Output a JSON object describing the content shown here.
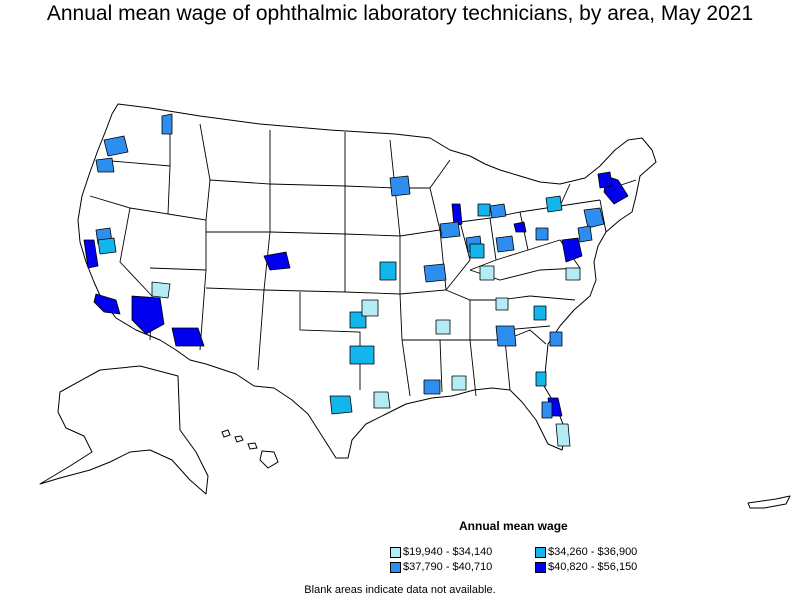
{
  "title": "Annual mean wage of ophthalmic laboratory technicians, by area, May 2021",
  "legend": {
    "title": "Annual mean wage",
    "bins": [
      {
        "label": "$19,940 - $34,140",
        "color": "#b3ecf5"
      },
      {
        "label": "$34,260 - $36,900",
        "color": "#13b6ec"
      },
      {
        "label": "$37,790 - $40,710",
        "color": "#2e8ef0"
      },
      {
        "label": "$40,820 - $56,150",
        "color": "#0000ee"
      }
    ]
  },
  "note": "Blank areas indicate data not available.",
  "map": {
    "no_data_color": "#ffffff",
    "border_color": "#000000",
    "regions": [
      "Contiguous United States",
      "Alaska",
      "Hawaii",
      "Puerto Rico"
    ]
  }
}
